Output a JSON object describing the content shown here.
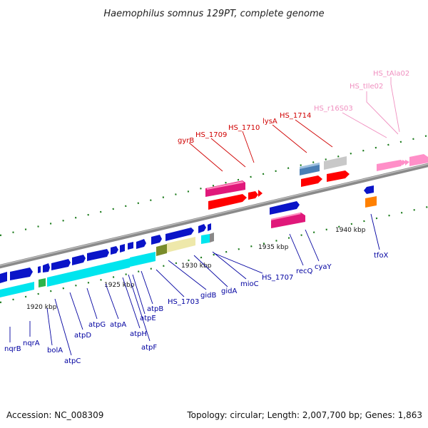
{
  "title": "Haemophilus somnus 129PT, complete genome",
  "footer": {
    "accession": "Accession: NC_008309",
    "topology": "Topology: circular; Length: 2,007,700 bp; Genes: 1,863"
  },
  "scale_ticks": [
    "1920 kbp",
    "1925 kbp",
    "1930 kbp",
    "1935 kbp",
    "1940 kbp"
  ],
  "colors": {
    "backbone": "#8a8a8a",
    "forward_cds": "#0a14c8",
    "reverse_cds": "#0a14c8",
    "atp_operon": "#00e5ee",
    "rna": "#ff8fc8",
    "label_blue": "#0000a0",
    "label_red": "#d00000",
    "label_pink": "#f090c0",
    "tick_green": "#1a7a1a"
  },
  "labels_blue": [
    "nqrB",
    "nqrA",
    "bolA",
    "atpC",
    "atpD",
    "atpG",
    "atpA",
    "atpH",
    "atpF",
    "atpE",
    "atpB",
    "HS_1703",
    "gidB",
    "gidA",
    "mioC",
    "HS_1707",
    "recQ",
    "cyaY",
    "tfoX"
  ],
  "labels_red": [
    "gyrB",
    "HS_1709",
    "HS_1710",
    "lysA",
    "HS_1714"
  ],
  "labels_pink": [
    "HS_r16S03",
    "HS_tIle02",
    "HS_tAla02"
  ]
}
